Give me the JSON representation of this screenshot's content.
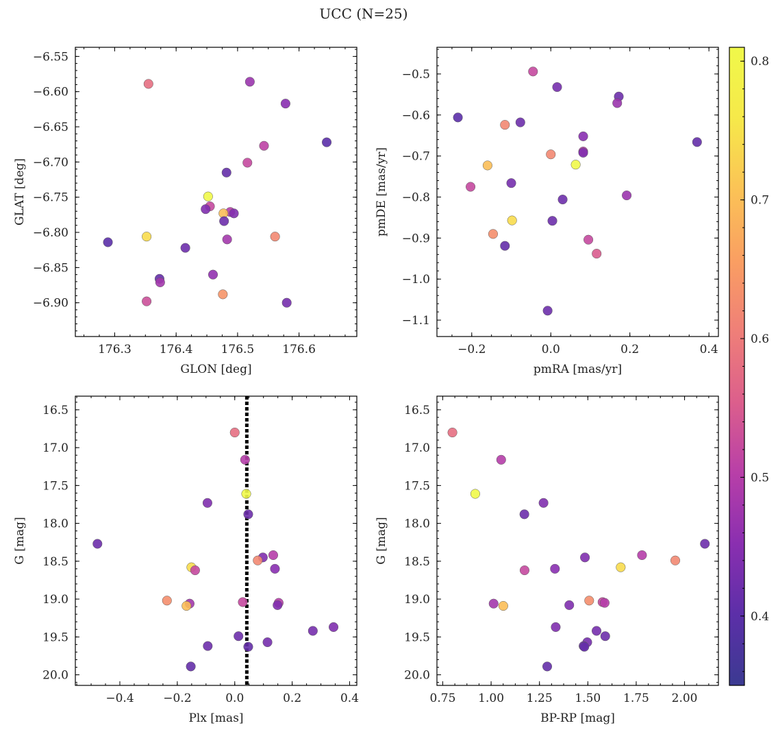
{
  "figure": {
    "title": "UCC (N=25)"
  },
  "colorbar": {
    "min": 0.35,
    "max": 0.81,
    "ticks": [
      0.4,
      0.5,
      0.6,
      0.7,
      0.8
    ],
    "tick_labels": [
      "0.4",
      "0.5",
      "0.6",
      "0.7",
      "0.8"
    ],
    "colormap": "plasma",
    "stops": [
      "#3b3a91",
      "#5c2fa8",
      "#8a2fb0",
      "#b83fa8",
      "#dc5f8c",
      "#ef7f78",
      "#fa9f62",
      "#fbc356",
      "#f6e94a",
      "#f0f84a"
    ]
  },
  "chart_data": [
    {
      "type": "scatter",
      "id": "glon-glat",
      "xlabel": "GLON [deg]",
      "ylabel": "GLAT [deg]",
      "xlim": [
        176.236,
        176.694
      ],
      "ylim": [
        -6.948,
        -6.537
      ],
      "xticks": [
        176.3,
        176.4,
        176.5,
        176.6
      ],
      "xtick_labels": [
        "176.3",
        "176.4",
        "176.5",
        "176.6"
      ],
      "yticks": [
        -6.9,
        -6.85,
        -6.8,
        -6.75,
        -6.7,
        -6.65,
        -6.6,
        -6.55
      ],
      "ytick_labels": [
        "−6.90",
        "−6.85",
        "−6.80",
        "−6.75",
        "−6.70",
        "−6.65",
        "−6.60",
        "−6.55"
      ],
      "points": [
        {
          "x": 176.355,
          "y": -6.589,
          "c": 0.58
        },
        {
          "x": 176.52,
          "y": -6.586,
          "c": 0.47
        },
        {
          "x": 176.578,
          "y": -6.617,
          "c": 0.45
        },
        {
          "x": 176.645,
          "y": -6.672,
          "c": 0.4
        },
        {
          "x": 176.543,
          "y": -6.677,
          "c": 0.51
        },
        {
          "x": 176.516,
          "y": -6.701,
          "c": 0.52
        },
        {
          "x": 176.482,
          "y": -6.715,
          "c": 0.41
        },
        {
          "x": 176.452,
          "y": -6.749,
          "c": 0.81
        },
        {
          "x": 176.455,
          "y": -6.763,
          "c": 0.52
        },
        {
          "x": 176.448,
          "y": -6.767,
          "c": 0.44
        },
        {
          "x": 176.488,
          "y": -6.771,
          "c": 0.5
        },
        {
          "x": 176.494,
          "y": -6.773,
          "c": 0.44
        },
        {
          "x": 176.477,
          "y": -6.773,
          "c": 0.7
        },
        {
          "x": 176.478,
          "y": -6.784,
          "c": 0.42
        },
        {
          "x": 176.483,
          "y": -6.81,
          "c": 0.48
        },
        {
          "x": 176.352,
          "y": -6.806,
          "c": 0.74
        },
        {
          "x": 176.561,
          "y": -6.806,
          "c": 0.62
        },
        {
          "x": 176.289,
          "y": -6.814,
          "c": 0.4
        },
        {
          "x": 176.415,
          "y": -6.822,
          "c": 0.42
        },
        {
          "x": 176.46,
          "y": -6.86,
          "c": 0.46
        },
        {
          "x": 176.373,
          "y": -6.866,
          "c": 0.41
        },
        {
          "x": 176.374,
          "y": -6.871,
          "c": 0.48
        },
        {
          "x": 176.476,
          "y": -6.888,
          "c": 0.64
        },
        {
          "x": 176.352,
          "y": -6.898,
          "c": 0.53
        },
        {
          "x": 176.58,
          "y": -6.9,
          "c": 0.43
        }
      ]
    },
    {
      "type": "scatter",
      "id": "pmra-pmde",
      "xlabel": "pmRA [mas/yr]",
      "ylabel": "pmDE [mas/yr]",
      "xlim": [
        -0.288,
        0.424
      ],
      "ylim": [
        -1.14,
        -0.435
      ],
      "xticks": [
        -0.2,
        0.0,
        0.2,
        0.4
      ],
      "xtick_labels": [
        "−0.2",
        "0.0",
        "0.2",
        "0.4"
      ],
      "yticks": [
        -1.1,
        -1.0,
        -0.9,
        -0.8,
        -0.7,
        -0.6,
        -0.5
      ],
      "ytick_labels": [
        "−1.1",
        "−1.0",
        "−0.9",
        "−0.8",
        "−0.7",
        "−0.6",
        "−0.5"
      ],
      "points": [
        {
          "x": -0.045,
          "y": -0.494,
          "c": 0.52
        },
        {
          "x": 0.016,
          "y": -0.532,
          "c": 0.43
        },
        {
          "x": 0.172,
          "y": -0.555,
          "c": 0.42
        },
        {
          "x": 0.168,
          "y": -0.571,
          "c": 0.47
        },
        {
          "x": -0.235,
          "y": -0.606,
          "c": 0.4
        },
        {
          "x": -0.077,
          "y": -0.618,
          "c": 0.42
        },
        {
          "x": -0.116,
          "y": -0.624,
          "c": 0.62
        },
        {
          "x": 0.082,
          "y": -0.652,
          "c": 0.45
        },
        {
          "x": 0.37,
          "y": -0.666,
          "c": 0.41
        },
        {
          "x": 0.082,
          "y": -0.689,
          "c": 0.5
        },
        {
          "x": 0.082,
          "y": -0.692,
          "c": 0.44
        },
        {
          "x": 0.0,
          "y": -0.696,
          "c": 0.62
        },
        {
          "x": -0.16,
          "y": -0.723,
          "c": 0.7
        },
        {
          "x": 0.063,
          "y": -0.721,
          "c": 0.81
        },
        {
          "x": -0.1,
          "y": -0.766,
          "c": 0.43
        },
        {
          "x": -0.203,
          "y": -0.775,
          "c": 0.52
        },
        {
          "x": 0.192,
          "y": -0.796,
          "c": 0.47
        },
        {
          "x": 0.03,
          "y": -0.806,
          "c": 0.42
        },
        {
          "x": -0.098,
          "y": -0.857,
          "c": 0.74
        },
        {
          "x": 0.004,
          "y": -0.858,
          "c": 0.42
        },
        {
          "x": -0.146,
          "y": -0.89,
          "c": 0.63
        },
        {
          "x": 0.095,
          "y": -0.904,
          "c": 0.52
        },
        {
          "x": -0.116,
          "y": -0.919,
          "c": 0.41
        },
        {
          "x": 0.116,
          "y": -0.938,
          "c": 0.55
        },
        {
          "x": -0.008,
          "y": -1.077,
          "c": 0.42
        }
      ]
    },
    {
      "type": "scatter",
      "id": "plx-g",
      "xlabel": "Plx [mas]",
      "ylabel": "G [mag]",
      "xlim": [
        -0.555,
        0.425
      ],
      "ylim": [
        20.14,
        16.32
      ],
      "xticks": [
        -0.4,
        -0.2,
        0.0,
        0.2,
        0.4
      ],
      "xtick_labels": [
        "−0.4",
        "−0.2",
        "0.0",
        "0.2",
        "0.4"
      ],
      "yticks": [
        16.5,
        17.0,
        17.5,
        18.0,
        18.5,
        19.0,
        19.5,
        20.0
      ],
      "ytick_labels": [
        "16.5",
        "17.0",
        "17.5",
        "18.0",
        "18.5",
        "19.0",
        "19.5",
        "20.0"
      ],
      "vline": {
        "x": 0.042,
        "style": "dotted"
      },
      "points": [
        {
          "x": 0.0,
          "y": 16.8,
          "c": 0.58
        },
        {
          "x": 0.036,
          "y": 17.16,
          "c": 0.5
        },
        {
          "x": 0.04,
          "y": 17.61,
          "c": 0.81
        },
        {
          "x": -0.095,
          "y": 17.73,
          "c": 0.44
        },
        {
          "x": 0.047,
          "y": 17.88,
          "c": 0.42
        },
        {
          "x": -0.478,
          "y": 18.27,
          "c": 0.42
        },
        {
          "x": 0.134,
          "y": 18.42,
          "c": 0.5
        },
        {
          "x": 0.098,
          "y": 18.45,
          "c": 0.44
        },
        {
          "x": 0.08,
          "y": 18.49,
          "c": 0.62
        },
        {
          "x": -0.151,
          "y": 18.58,
          "c": 0.74
        },
        {
          "x": 0.14,
          "y": 18.6,
          "c": 0.45
        },
        {
          "x": -0.138,
          "y": 18.62,
          "c": 0.52
        },
        {
          "x": -0.236,
          "y": 19.02,
          "c": 0.63
        },
        {
          "x": 0.028,
          "y": 19.04,
          "c": 0.52
        },
        {
          "x": 0.153,
          "y": 19.05,
          "c": 0.5
        },
        {
          "x": -0.157,
          "y": 19.06,
          "c": 0.48
        },
        {
          "x": 0.149,
          "y": 19.08,
          "c": 0.44
        },
        {
          "x": -0.168,
          "y": 19.09,
          "c": 0.7
        },
        {
          "x": 0.344,
          "y": 19.37,
          "c": 0.44
        },
        {
          "x": 0.272,
          "y": 19.42,
          "c": 0.43
        },
        {
          "x": 0.013,
          "y": 19.49,
          "c": 0.42
        },
        {
          "x": 0.114,
          "y": 19.57,
          "c": 0.43
        },
        {
          "x": -0.094,
          "y": 19.62,
          "c": 0.42
        },
        {
          "x": 0.047,
          "y": 19.63,
          "c": 0.41
        },
        {
          "x": -0.153,
          "y": 19.89,
          "c": 0.41
        }
      ]
    },
    {
      "type": "scatter",
      "id": "bprp-g",
      "xlabel": "BP-RP [mag]",
      "ylabel": "G [mag]",
      "xlim": [
        0.72,
        2.175
      ],
      "ylim": [
        20.14,
        16.32
      ],
      "xticks": [
        0.75,
        1.0,
        1.25,
        1.5,
        1.75,
        2.0
      ],
      "xtick_labels": [
        "0.75",
        "1.00",
        "1.25",
        "1.50",
        "1.75",
        "2.00"
      ],
      "yticks": [
        16.5,
        17.0,
        17.5,
        18.0,
        18.5,
        19.0,
        19.5,
        20.0
      ],
      "ytick_labels": [
        "16.5",
        "17.0",
        "17.5",
        "18.0",
        "18.5",
        "19.0",
        "19.5",
        "20.0"
      ],
      "points": [
        {
          "x": 0.8,
          "y": 16.8,
          "c": 0.58
        },
        {
          "x": 1.052,
          "y": 17.16,
          "c": 0.5
        },
        {
          "x": 0.918,
          "y": 17.61,
          "c": 0.81
        },
        {
          "x": 1.271,
          "y": 17.73,
          "c": 0.44
        },
        {
          "x": 1.172,
          "y": 17.88,
          "c": 0.42
        },
        {
          "x": 2.105,
          "y": 18.27,
          "c": 0.42
        },
        {
          "x": 1.78,
          "y": 18.42,
          "c": 0.5
        },
        {
          "x": 1.485,
          "y": 18.45,
          "c": 0.44
        },
        {
          "x": 1.952,
          "y": 18.49,
          "c": 0.62
        },
        {
          "x": 1.67,
          "y": 18.58,
          "c": 0.74
        },
        {
          "x": 1.33,
          "y": 18.6,
          "c": 0.45
        },
        {
          "x": 1.173,
          "y": 18.62,
          "c": 0.52
        },
        {
          "x": 1.507,
          "y": 19.02,
          "c": 0.63
        },
        {
          "x": 1.576,
          "y": 19.04,
          "c": 0.52
        },
        {
          "x": 1.587,
          "y": 19.05,
          "c": 0.5
        },
        {
          "x": 1.013,
          "y": 19.06,
          "c": 0.48
        },
        {
          "x": 1.404,
          "y": 19.08,
          "c": 0.44
        },
        {
          "x": 1.063,
          "y": 19.09,
          "c": 0.7
        },
        {
          "x": 1.334,
          "y": 19.37,
          "c": 0.44
        },
        {
          "x": 1.545,
          "y": 19.42,
          "c": 0.43
        },
        {
          "x": 1.59,
          "y": 19.49,
          "c": 0.42
        },
        {
          "x": 1.497,
          "y": 19.57,
          "c": 0.43
        },
        {
          "x": 1.478,
          "y": 19.62,
          "c": 0.42
        },
        {
          "x": 1.482,
          "y": 19.63,
          "c": 0.41
        },
        {
          "x": 1.29,
          "y": 19.89,
          "c": 0.41
        }
      ]
    }
  ]
}
